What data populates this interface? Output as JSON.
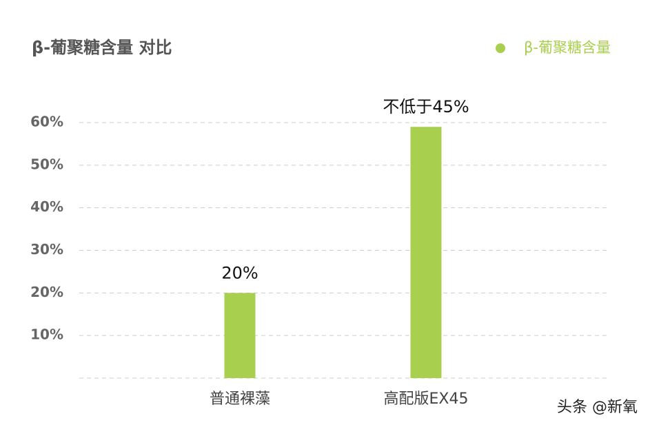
{
  "chart_data": {
    "type": "bar",
    "title": "β-葡聚糖含量 对比",
    "categories": [
      "普通裸藻",
      "高配版EX45"
    ],
    "series": [
      {
        "name": "β-葡聚糖含量",
        "color": "#a9cf4f",
        "values": [
          20,
          59
        ]
      }
    ],
    "annotations": [
      "20%",
      "不低于45%"
    ],
    "ylim": [
      0,
      60
    ],
    "yticks": [
      {
        "value": 10,
        "label": "10%"
      },
      {
        "value": 20,
        "label": "20%"
      },
      {
        "value": 30,
        "label": "30%"
      },
      {
        "value": 40,
        "label": "40%"
      },
      {
        "value": 50,
        "label": "50%"
      },
      {
        "value": 60,
        "label": "60%"
      }
    ],
    "grid": true,
    "legend": "top-right",
    "watermark": "头条 @新氧"
  }
}
